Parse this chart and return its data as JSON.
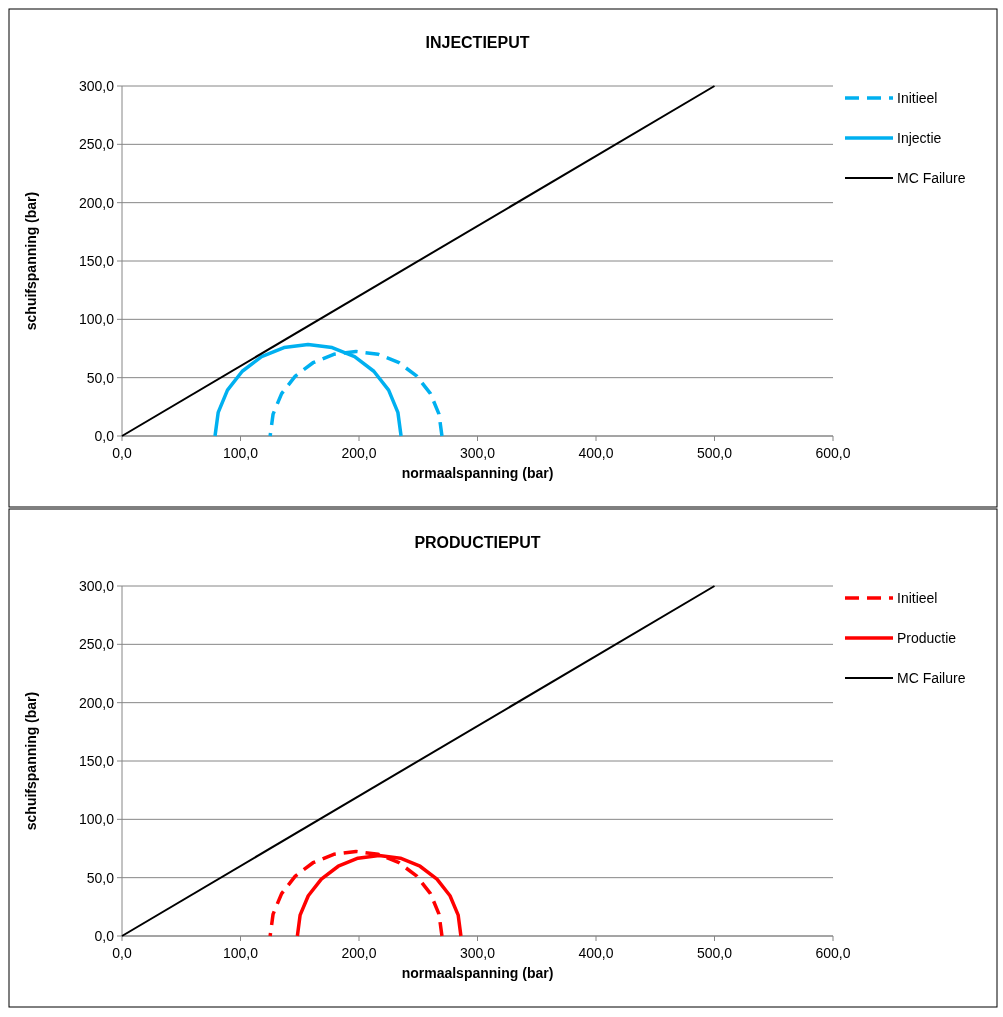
{
  "chart_data": [
    {
      "type": "line",
      "title": "INJECTIEPUT",
      "xlabel": "normaalspanning  (bar)",
      "ylabel": "schuifspanning  (bar)",
      "xlim": [
        0,
        600
      ],
      "ylim": [
        0,
        300
      ],
      "xticks": [
        {
          "value": 0,
          "label": "0,0"
        },
        {
          "value": 100,
          "label": "100,0"
        },
        {
          "value": 200,
          "label": "200,0"
        },
        {
          "value": 300,
          "label": "300,0"
        },
        {
          "value": 400,
          "label": "400,0"
        },
        {
          "value": 500,
          "label": "500,0"
        },
        {
          "value": 600,
          "label": "600,0"
        }
      ],
      "yticks": [
        {
          "value": 0,
          "label": "0,0"
        },
        {
          "value": 50,
          "label": "50,0"
        },
        {
          "value": 100,
          "label": "100,0"
        },
        {
          "value": 150,
          "label": "150,0"
        },
        {
          "value": 200,
          "label": "200,0"
        },
        {
          "value": 250,
          "label": "250,0"
        },
        {
          "value": 300,
          "label": "300,0"
        }
      ],
      "grid": "y",
      "legend": "right",
      "marker": "none",
      "series": [
        {
          "name": "Initieel",
          "color": "#00b0f0",
          "line_style": "dashed",
          "x": [
            270,
            267.5,
            260.3,
            248.8,
            233.8,
            216.3,
            197.5,
            178.7,
            161.2,
            146.2,
            134.7,
            127.5,
            125
          ],
          "values": [
            0,
            18.8,
            36.3,
            51.3,
            62.8,
            70.0,
            72.5,
            70.0,
            62.8,
            51.3,
            36.3,
            18.8,
            0
          ]
        },
        {
          "name": "Injectie",
          "color": "#00b0f0",
          "line_style": "solid",
          "x": [
            235.5,
            232.8,
            225.0,
            212.5,
            196.3,
            177.3,
            157,
            136.7,
            117.8,
            101.5,
            89.0,
            81.2,
            78.5
          ],
          "values": [
            0,
            20.3,
            39.3,
            55.5,
            68.0,
            75.8,
            78.5,
            75.8,
            68.0,
            55.5,
            39.3,
            20.3,
            0
          ]
        },
        {
          "name": "MC Failure",
          "color": "#000000",
          "line_style": "solid",
          "x": [
            0,
            500
          ],
          "values": [
            0,
            300
          ]
        }
      ]
    },
    {
      "type": "line",
      "title": "PRODUCTIEPUT",
      "xlabel": "normaalspanning  (bar)",
      "ylabel": "schuifspanning  (bar)",
      "xlim": [
        0,
        600
      ],
      "ylim": [
        0,
        300
      ],
      "xticks": [
        {
          "value": 0,
          "label": "0,0"
        },
        {
          "value": 100,
          "label": "100,0"
        },
        {
          "value": 200,
          "label": "200,0"
        },
        {
          "value": 300,
          "label": "300,0"
        },
        {
          "value": 400,
          "label": "400,0"
        },
        {
          "value": 500,
          "label": "500,0"
        },
        {
          "value": 600,
          "label": "600,0"
        }
      ],
      "yticks": [
        {
          "value": 0,
          "label": "0,0"
        },
        {
          "value": 50,
          "label": "50,0"
        },
        {
          "value": 100,
          "label": "100,0"
        },
        {
          "value": 150,
          "label": "150,0"
        },
        {
          "value": 200,
          "label": "200,0"
        },
        {
          "value": 250,
          "label": "250,0"
        },
        {
          "value": 300,
          "label": "300,0"
        }
      ],
      "grid": "y",
      "legend": "right",
      "marker": "none",
      "series": [
        {
          "name": "Initieel",
          "color": "#ff0000",
          "line_style": "dashed",
          "x": [
            270,
            267.5,
            260.3,
            248.8,
            233.8,
            216.3,
            197.5,
            178.7,
            161.2,
            146.2,
            134.7,
            127.5,
            125
          ],
          "values": [
            0,
            18.8,
            36.3,
            51.3,
            62.8,
            70.0,
            72.5,
            70.0,
            62.8,
            51.3,
            36.3,
            18.8,
            0
          ]
        },
        {
          "name": "Productie",
          "color": "#ff0000",
          "line_style": "solid",
          "x": [
            286,
            283.7,
            276.8,
            265.8,
            251.5,
            234.9,
            217,
            199.1,
            182.5,
            168.2,
            157.2,
            150.3,
            148
          ],
          "values": [
            0,
            17.9,
            34.5,
            48.8,
            59.8,
            66.7,
            69,
            66.7,
            59.8,
            48.8,
            34.5,
            17.9,
            0
          ]
        },
        {
          "name": "MC Failure",
          "color": "#000000",
          "line_style": "solid",
          "x": [
            0,
            500
          ],
          "values": [
            0,
            300
          ]
        }
      ]
    }
  ]
}
